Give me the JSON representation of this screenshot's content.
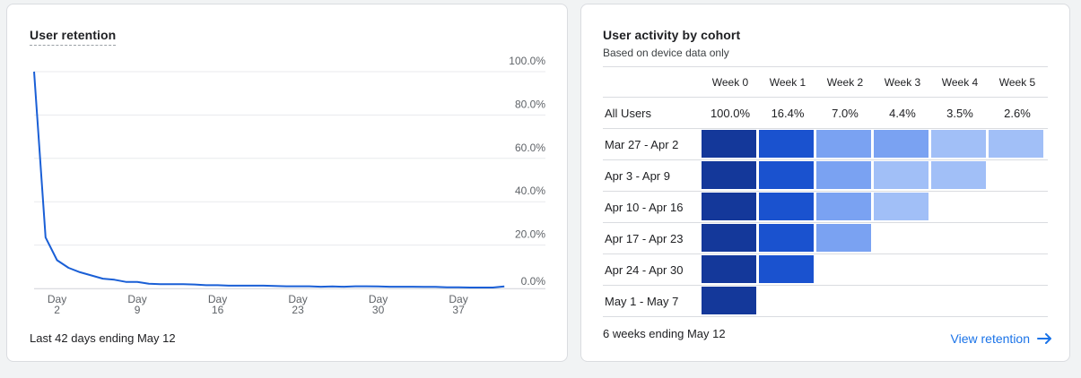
{
  "retention_card": {
    "title": "User retention",
    "footer": "Last 42 days ending May 12"
  },
  "chart_data": {
    "type": "line",
    "title": "User retention",
    "xlabel": "",
    "ylabel": "",
    "ylim": [
      0,
      100
    ],
    "xlim": [
      0,
      42
    ],
    "y_ticks": [
      "100.0%",
      "80.0%",
      "60.0%",
      "40.0%",
      "20.0%",
      "0.0%"
    ],
    "x_ticks": [
      {
        "day": 2,
        "label_top": "Day",
        "label_bottom": "2"
      },
      {
        "day": 9,
        "label_top": "Day",
        "label_bottom": "9"
      },
      {
        "day": 16,
        "label_top": "Day",
        "label_bottom": "16"
      },
      {
        "day": 23,
        "label_top": "Day",
        "label_bottom": "23"
      },
      {
        "day": 30,
        "label_top": "Day",
        "label_bottom": "30"
      },
      {
        "day": 37,
        "label_top": "Day",
        "label_bottom": "37"
      }
    ],
    "grid": true,
    "series": [
      {
        "color": "#1a5fd6",
        "x": [
          0,
          1,
          2,
          3,
          4,
          5,
          6,
          7,
          8,
          9,
          10,
          11,
          12,
          13,
          14,
          15,
          16,
          17,
          18,
          19,
          20,
          21,
          22,
          23,
          24,
          25,
          26,
          27,
          28,
          29,
          30,
          31,
          32,
          33,
          34,
          35,
          36,
          37,
          38,
          39,
          40,
          41
        ],
        "values": [
          100,
          23.5,
          13,
          9.5,
          7.5,
          6,
          4.5,
          4,
          3,
          3,
          2.2,
          2,
          2,
          2,
          1.8,
          1.5,
          1.5,
          1.3,
          1.3,
          1.3,
          1.3,
          1.1,
          1.0,
          1.0,
          1.0,
          0.8,
          0.9,
          0.8,
          1.0,
          1.0,
          0.9,
          0.8,
          0.8,
          0.8,
          0.7,
          0.7,
          0.5,
          0.5,
          0.4,
          0.4,
          0.4,
          0.9
        ]
      }
    ]
  },
  "cohort_card": {
    "title": "User activity by cohort",
    "subtitle": "Based on device data only",
    "weeks": [
      "Week 0",
      "Week 1",
      "Week 2",
      "Week 3",
      "Week 4",
      "Week 5"
    ],
    "all_users_label": "All Users",
    "all_users_values": [
      "100.0%",
      "16.4%",
      "7.0%",
      "4.4%",
      "3.5%",
      "2.6%"
    ],
    "cohorts": [
      {
        "label": "Mar 27 - Apr 2",
        "levels": [
          5,
          4,
          2,
          2,
          1,
          1
        ]
      },
      {
        "label": "Apr 3 - Apr 9",
        "levels": [
          5,
          4,
          2,
          1,
          1
        ]
      },
      {
        "label": "Apr 10 - Apr 16",
        "levels": [
          5,
          4,
          2,
          1
        ]
      },
      {
        "label": "Apr 17 - Apr 23",
        "levels": [
          5,
          4,
          2
        ]
      },
      {
        "label": "Apr 24 - Apr 30",
        "levels": [
          5,
          4
        ]
      },
      {
        "label": "May 1 - May 7",
        "levels": [
          5
        ]
      }
    ],
    "level_colors": {
      "1": "#a1bff7",
      "2": "#7aa2f2",
      "4": "#1a52cf",
      "5": "#14389a"
    },
    "footer": "6 weeks ending May 12",
    "link_label": "View retention",
    "link_icon": "arrow-right-icon"
  }
}
